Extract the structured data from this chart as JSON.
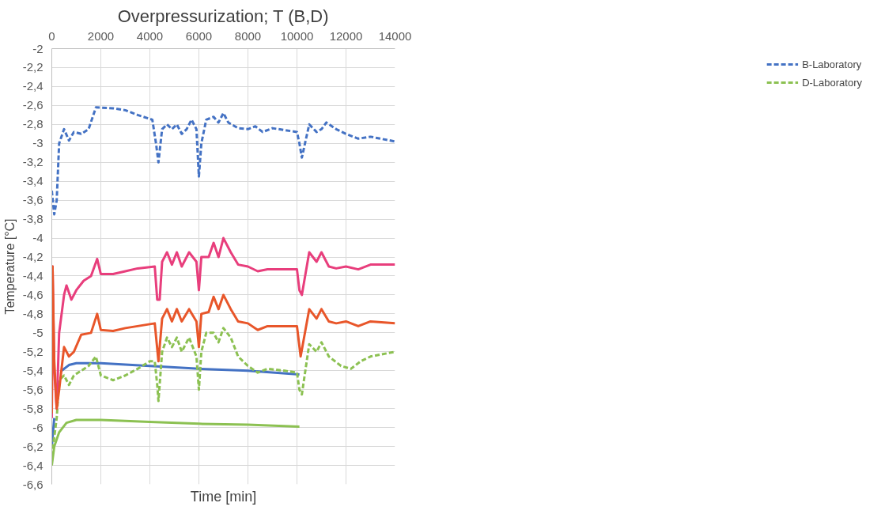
{
  "chart_data": {
    "type": "line",
    "title": "Overpressurization; T (B,D)",
    "xlabel": "Time [min]",
    "ylabel": "Temperature [°C]",
    "xlim": [
      0,
      14000
    ],
    "xticks": [
      0,
      2000,
      4000,
      6000,
      8000,
      10000,
      12000,
      14000
    ],
    "ylim": [
      -6.6,
      -2
    ],
    "yticks": [
      {
        "value": -2,
        "label": "-2"
      },
      {
        "value": -2.2,
        "label": "-2,2"
      },
      {
        "value": -2.4,
        "label": "-2,4"
      },
      {
        "value": -2.6,
        "label": "-2,6"
      },
      {
        "value": -2.8,
        "label": "-2,8"
      },
      {
        "value": -3,
        "label": "-3"
      },
      {
        "value": -3.2,
        "label": "-3,2"
      },
      {
        "value": -3.4,
        "label": "-3,4"
      },
      {
        "value": -3.6,
        "label": "-3,6"
      },
      {
        "value": -3.8,
        "label": "-3,8"
      },
      {
        "value": -4,
        "label": "-4"
      },
      {
        "value": -4.2,
        "label": "-4,2"
      },
      {
        "value": -4.4,
        "label": "-4,4"
      },
      {
        "value": -4.6,
        "label": "-4,6"
      },
      {
        "value": -4.8,
        "label": "-4,8"
      },
      {
        "value": -5,
        "label": "-5"
      },
      {
        "value": -5.2,
        "label": "-5,2"
      },
      {
        "value": -5.4,
        "label": "-5,4"
      },
      {
        "value": -5.6,
        "label": "-5,6"
      },
      {
        "value": -5.8,
        "label": "-5,8"
      },
      {
        "value": -6,
        "label": "-6"
      },
      {
        "value": -6.2,
        "label": "-6,2"
      },
      {
        "value": -6.4,
        "label": "-6,4"
      },
      {
        "value": -6.6,
        "label": "-6,6"
      }
    ],
    "grid": true,
    "legend": "right",
    "marker": "none",
    "series": [
      {
        "color": "#4472c4",
        "line_style": "solid",
        "x": [
          0,
          100,
          200,
          400,
          700,
          1000,
          2000,
          4000,
          6000,
          8000,
          10100
        ],
        "values": [
          -6.2,
          -5.9,
          null,
          -5.4,
          -5.34,
          -5.32,
          -5.32,
          -5.35,
          -5.38,
          -5.4,
          -5.44
        ]
      },
      {
        "color": "#8cc152",
        "line_style": "solid",
        "x": [
          0,
          100,
          300,
          600,
          1000,
          2000,
          4000,
          6000,
          8000,
          10100
        ],
        "values": [
          -6.4,
          -6.2,
          -6.05,
          -5.95,
          -5.92,
          -5.92,
          -5.94,
          -5.96,
          -5.97,
          -5.99
        ]
      },
      {
        "name": "B-Laboratory",
        "color": "#4472c4",
        "line_style": "dashed",
        "x": [
          0,
          100,
          200,
          300,
          500,
          700,
          900,
          1200,
          1500,
          1800,
          2500,
          3000,
          3500,
          4100,
          4250,
          4350,
          4500,
          4700,
          4900,
          5100,
          5300,
          5500,
          5700,
          5900,
          6000,
          6100,
          6300,
          6600,
          6800,
          7000,
          7200,
          7600,
          8000,
          8300,
          8600,
          9000,
          9500,
          10000,
          10100,
          10200,
          10500,
          10800,
          11000,
          11200,
          11600,
          12000,
          12500,
          13000,
          14000
        ],
        "values": [
          -3.5,
          -3.75,
          -3.6,
          -3.0,
          -2.85,
          -2.97,
          -2.88,
          -2.9,
          -2.85,
          -2.62,
          -2.63,
          -2.65,
          -2.7,
          -2.75,
          -3.0,
          -3.2,
          -2.85,
          -2.8,
          -2.85,
          -2.8,
          -2.9,
          -2.85,
          -2.75,
          -2.85,
          -3.35,
          -3.0,
          -2.75,
          -2.72,
          -2.78,
          -2.68,
          -2.78,
          -2.84,
          -2.85,
          -2.82,
          -2.88,
          -2.84,
          -2.86,
          -2.88,
          -3.0,
          -3.15,
          -2.8,
          -2.88,
          -2.85,
          -2.78,
          -2.85,
          -2.9,
          -2.95,
          -2.93,
          -2.98
        ]
      },
      {
        "name": "D-Laboratory",
        "color": "#8cc152",
        "line_style": "dashed",
        "x": [
          0,
          100,
          200,
          300,
          500,
          700,
          900,
          1200,
          1500,
          1800,
          2000,
          2500,
          3000,
          3500,
          4000,
          4200,
          4300,
          4350,
          4500,
          4700,
          4900,
          5100,
          5300,
          5600,
          5900,
          6000,
          6100,
          6300,
          6600,
          6800,
          7000,
          7300,
          7600,
          8000,
          8400,
          8800,
          9500,
          10000,
          10100,
          10200,
          10500,
          10800,
          11000,
          11300,
          11800,
          12200,
          12600,
          13000,
          14000
        ],
        "values": [
          -6.3,
          -6.1,
          -5.9,
          -5.5,
          -5.45,
          -5.55,
          -5.45,
          -5.4,
          -5.35,
          -5.25,
          -5.45,
          -5.5,
          -5.45,
          -5.38,
          -5.3,
          -5.3,
          -5.55,
          -5.72,
          -5.2,
          -5.05,
          -5.15,
          -5.05,
          -5.2,
          -5.05,
          -5.25,
          -5.6,
          -5.2,
          -5.0,
          -5.0,
          -5.1,
          -4.95,
          -5.05,
          -5.25,
          -5.35,
          -5.42,
          -5.38,
          -5.4,
          -5.42,
          -5.6,
          -5.65,
          -5.12,
          -5.2,
          -5.1,
          -5.25,
          -5.35,
          -5.38,
          -5.3,
          -5.25,
          -5.2
        ]
      },
      {
        "color": "#e83e7c",
        "line_style": "solid",
        "x": [
          0,
          30,
          100,
          200,
          300,
          500,
          600,
          800,
          1000,
          1300,
          1600,
          1850,
          2000,
          2500,
          3000,
          3500,
          4200,
          4300,
          4400,
          4500,
          4700,
          4900,
          5100,
          5300,
          5600,
          5900,
          6000,
          6100,
          6400,
          6600,
          6800,
          7000,
          7300,
          7600,
          8000,
          8400,
          8800,
          9500,
          10000,
          10100,
          10200,
          10500,
          10800,
          11000,
          11300,
          11600,
          12000,
          12500,
          13000,
          14000
        ],
        "values": [
          -5.9,
          -4.3,
          -5.4,
          -5.8,
          -5.0,
          -4.6,
          -4.5,
          -4.65,
          -4.55,
          -4.45,
          -4.4,
          -4.22,
          -4.38,
          -4.38,
          -4.35,
          -4.32,
          -4.3,
          -4.65,
          -4.65,
          -4.25,
          -4.15,
          -4.28,
          -4.15,
          -4.3,
          -4.15,
          -4.25,
          -4.55,
          -4.2,
          -4.2,
          -4.05,
          -4.2,
          -4.0,
          -4.15,
          -4.28,
          -4.3,
          -4.35,
          -4.33,
          -4.33,
          -4.33,
          -4.55,
          -4.6,
          -4.15,
          -4.25,
          -4.15,
          -4.3,
          -4.32,
          -4.3,
          -4.33,
          -4.28,
          -4.28
        ]
      },
      {
        "color": "#e8562a",
        "line_style": "solid",
        "x": [
          0,
          30,
          100,
          200,
          300,
          500,
          700,
          900,
          1200,
          1600,
          1850,
          2000,
          2500,
          3000,
          4200,
          4350,
          4500,
          4700,
          4900,
          5100,
          5300,
          5600,
          5900,
          6000,
          6100,
          6400,
          6600,
          6800,
          7000,
          7300,
          7600,
          8000,
          8400,
          8800,
          9500,
          10000,
          10150,
          10500,
          10800,
          11000,
          11300,
          11600,
          12000,
          12500,
          13000,
          14000
        ],
        "values": [
          -5.85,
          -4.3,
          -5.3,
          -5.8,
          -5.6,
          -5.15,
          -5.25,
          -5.2,
          -5.02,
          -5.0,
          -4.8,
          -4.97,
          -4.98,
          -4.95,
          -4.9,
          -5.3,
          -4.85,
          -4.75,
          -4.88,
          -4.75,
          -4.88,
          -4.75,
          -4.88,
          -5.15,
          -4.8,
          -4.78,
          -4.62,
          -4.75,
          -4.6,
          -4.75,
          -4.88,
          -4.9,
          -4.97,
          -4.93,
          -4.93,
          -4.93,
          -5.25,
          -4.75,
          -4.85,
          -4.75,
          -4.88,
          -4.9,
          -4.88,
          -4.93,
          -4.88,
          -4.9
        ]
      }
    ]
  }
}
